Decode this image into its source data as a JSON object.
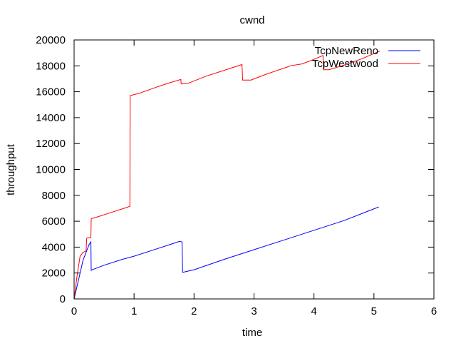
{
  "chart_data": {
    "type": "line",
    "title": "cwnd",
    "xlabel": "time",
    "ylabel": "throughput",
    "xlim": [
      0,
      6
    ],
    "ylim": [
      0,
      20000
    ],
    "x_ticks": [
      0,
      1,
      2,
      3,
      4,
      5,
      6
    ],
    "y_ticks": [
      0,
      2000,
      4000,
      6000,
      8000,
      10000,
      12000,
      14000,
      16000,
      18000,
      20000
    ],
    "grid": false,
    "legend_position": "top-right",
    "series": [
      {
        "name": "TcpNewReno",
        "color": "#0000ff",
        "points": [
          [
            0.0,
            0
          ],
          [
            0.05,
            1000
          ],
          [
            0.1,
            2000
          ],
          [
            0.15,
            3000
          ],
          [
            0.2,
            3600
          ],
          [
            0.25,
            4200
          ],
          [
            0.28,
            4400
          ],
          [
            0.285,
            2200
          ],
          [
            0.3,
            2250
          ],
          [
            0.5,
            2600
          ],
          [
            0.8,
            3050
          ],
          [
            1.0,
            3300
          ],
          [
            1.3,
            3750
          ],
          [
            1.6,
            4200
          ],
          [
            1.76,
            4450
          ],
          [
            1.8,
            4400
          ],
          [
            1.81,
            2050
          ],
          [
            2.0,
            2250
          ],
          [
            2.5,
            3050
          ],
          [
            3.0,
            3800
          ],
          [
            3.5,
            4550
          ],
          [
            4.0,
            5300
          ],
          [
            4.5,
            6050
          ],
          [
            5.08,
            7100
          ]
        ]
      },
      {
        "name": "TcpWestwood",
        "color": "#ff0000",
        "points": [
          [
            0.0,
            0
          ],
          [
            0.05,
            1800
          ],
          [
            0.1,
            3300
          ],
          [
            0.15,
            3600
          ],
          [
            0.2,
            3700
          ],
          [
            0.21,
            4700
          ],
          [
            0.28,
            4750
          ],
          [
            0.285,
            6200
          ],
          [
            0.4,
            6350
          ],
          [
            0.6,
            6650
          ],
          [
            0.8,
            6950
          ],
          [
            0.93,
            7150
          ],
          [
            0.935,
            15700
          ],
          [
            1.1,
            15900
          ],
          [
            1.4,
            16400
          ],
          [
            1.6,
            16700
          ],
          [
            1.78,
            16950
          ],
          [
            1.785,
            16600
          ],
          [
            1.9,
            16650
          ],
          [
            2.2,
            17200
          ],
          [
            2.5,
            17650
          ],
          [
            2.8,
            18100
          ],
          [
            2.81,
            16900
          ],
          [
            2.95,
            16900
          ],
          [
            3.2,
            17350
          ],
          [
            3.55,
            17900
          ],
          [
            3.6,
            18000
          ],
          [
            3.8,
            18150
          ],
          [
            4.0,
            18500
          ],
          [
            4.15,
            18800
          ],
          [
            4.16,
            17700
          ],
          [
            4.25,
            17700
          ],
          [
            4.5,
            18050
          ],
          [
            4.8,
            18550
          ],
          [
            5.1,
            19150
          ]
        ]
      }
    ]
  }
}
